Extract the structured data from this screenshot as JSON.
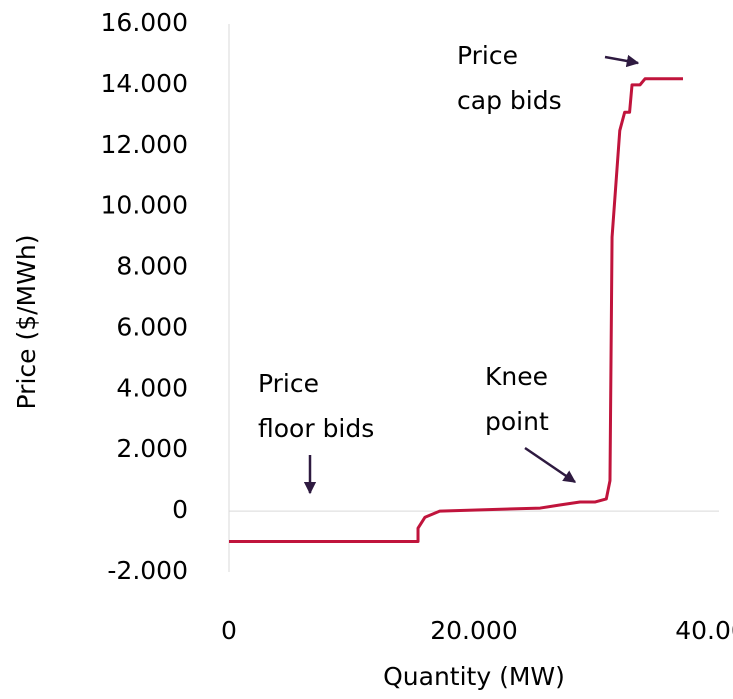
{
  "chart_data": {
    "type": "line",
    "xlabel": "Quantity (MW)",
    "ylabel": "Price ($/MWh)",
    "x": [
      0,
      15430,
      15430,
      16000,
      17200,
      25400,
      27000,
      28650,
      29900,
      30800,
      31100,
      31270,
      31900,
      32300,
      32700,
      32900,
      33550,
      33960,
      37060
    ],
    "values": [
      -1000,
      -1000,
      -560,
      -200,
      0,
      100,
      200,
      300,
      300,
      400,
      1000,
      9000,
      12500,
      13100,
      13100,
      14000,
      14000,
      14200,
      14200
    ],
    "color": "#c0143c",
    "xlim": [
      0,
      40000
    ],
    "xticks": [
      0,
      {
        "value": 20000,
        "label": "20.000"
      },
      {
        "value": 40000,
        "label": "40.000"
      }
    ],
    "ylim": [
      -2000,
      16000
    ],
    "yticks": [
      {
        "value": -2000,
        "label": "-2.000"
      },
      0,
      {
        "value": 2000,
        "label": "2.000"
      },
      {
        "value": 4000,
        "label": "4.000"
      },
      {
        "value": 6000,
        "label": "6.000"
      },
      {
        "value": 8000,
        "label": "8.000"
      },
      {
        "value": 10000,
        "label": "10.000"
      },
      {
        "value": 12000,
        "label": "12.000"
      },
      {
        "value": 14000,
        "label": "14.000"
      },
      {
        "value": 16000,
        "label": "16.000"
      }
    ],
    "annotations": [
      {
        "lines": [
          "Price",
          "cap bids"
        ]
      },
      {
        "lines": [
          "Knee",
          "point"
        ]
      },
      {
        "lines": [
          "Price",
          "floor bids"
        ]
      }
    ]
  }
}
